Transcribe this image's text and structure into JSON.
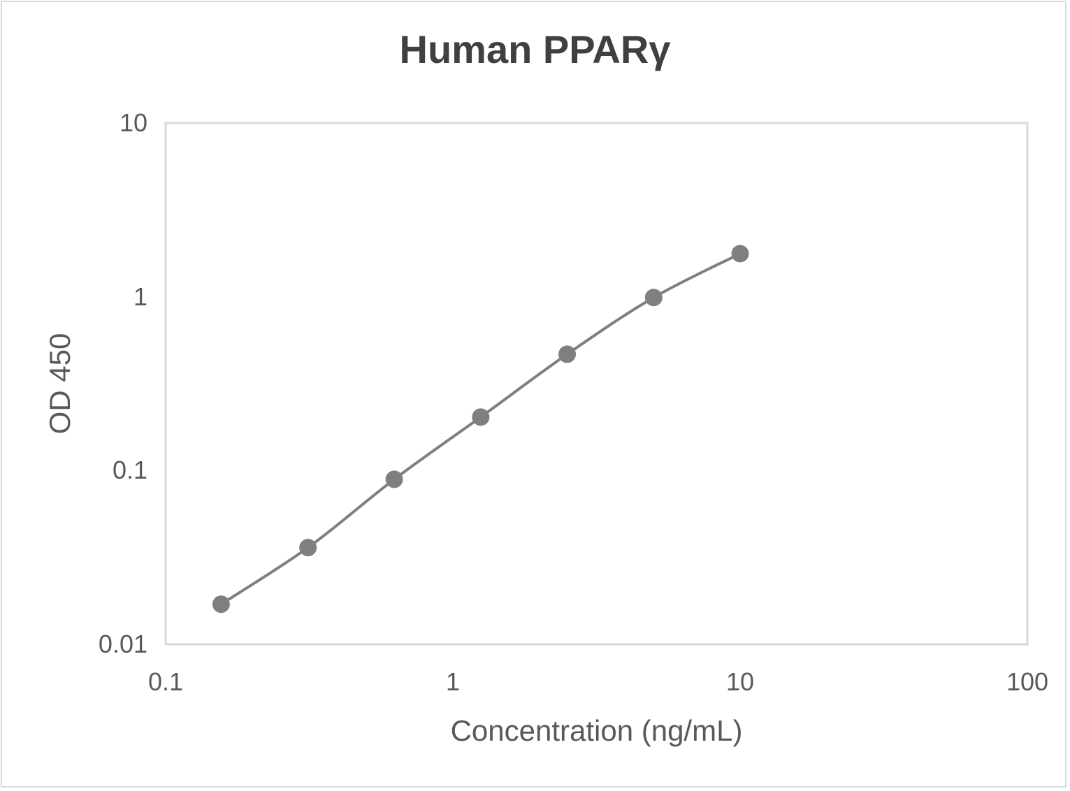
{
  "chart_data": {
    "type": "line",
    "title": "Human PPARγ",
    "xlabel": "Concentration (ng/mL)",
    "ylabel": "OD 450",
    "xscale": "log",
    "yscale": "log",
    "xlim": [
      0.1,
      100
    ],
    "ylim": [
      0.01,
      10
    ],
    "x_ticks": [
      "0.1",
      "1",
      "10",
      "100"
    ],
    "y_ticks": [
      "0.01",
      "0.1",
      "1",
      "10"
    ],
    "grid": false,
    "legend": null,
    "series": [
      {
        "name": "Human PPARγ",
        "color": "#7f7f7f",
        "marker": "circle",
        "smooth": true,
        "x": [
          0.156,
          0.313,
          0.625,
          1.25,
          2.5,
          5,
          10
        ],
        "values": [
          0.017,
          0.036,
          0.089,
          0.203,
          0.467,
          0.99,
          1.77
        ]
      }
    ]
  },
  "colors": {
    "line": "#7f7f7f",
    "marker": "#7f7f7f",
    "plot_border": "#d9d9d9",
    "text": "#595959",
    "title": "#404040"
  }
}
